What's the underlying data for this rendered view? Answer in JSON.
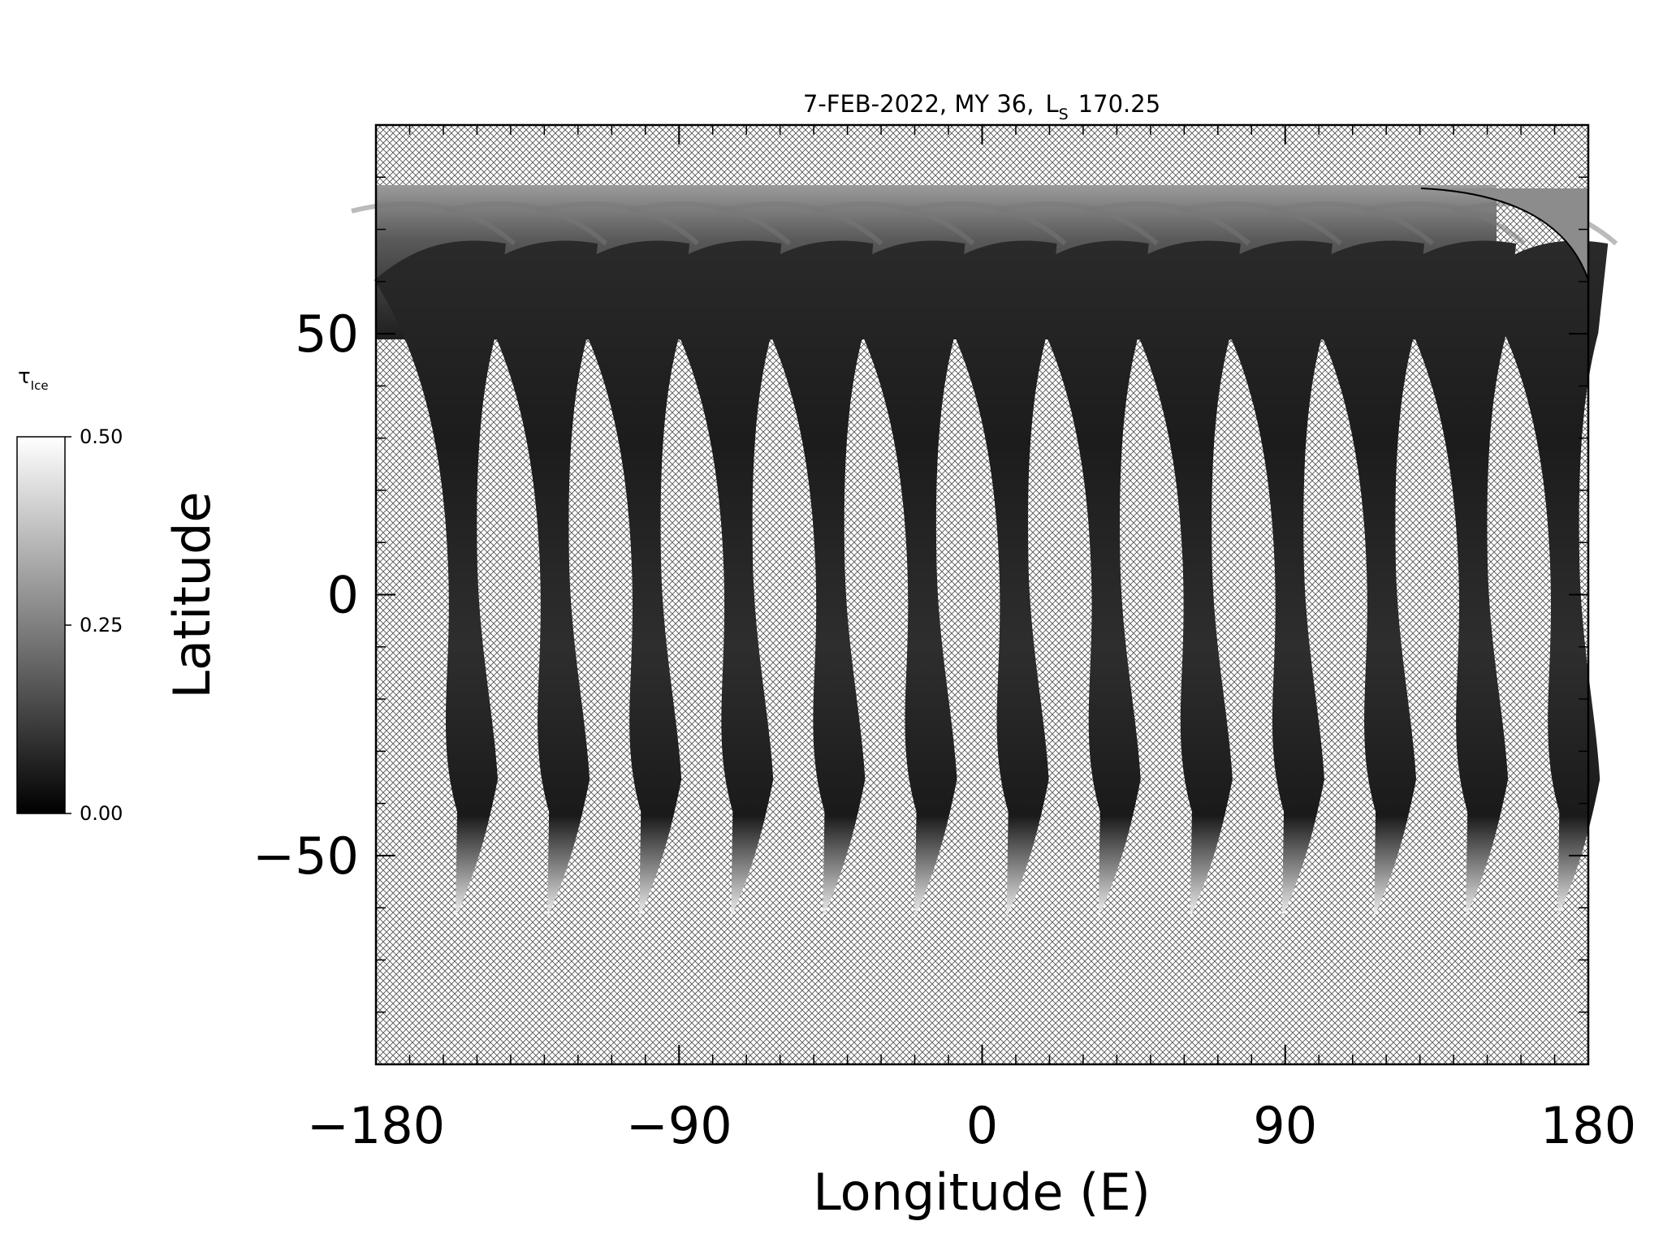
{
  "chart_data": {
    "type": "map",
    "title": {
      "text": "7-FEB-2022, MY 36,",
      "symbol": "L",
      "subscript": "S",
      "value": 170.25
    },
    "x_label": "Longitude (E)",
    "y_label": "Latitude",
    "xlim": [
      -180,
      180
    ],
    "ylim": [
      -90,
      90
    ],
    "xticks": [
      -180,
      -90,
      0,
      90,
      180
    ],
    "yticks": [
      -50,
      0,
      50
    ],
    "colorbar": {
      "label": "τ",
      "label_subscript": "Ice",
      "range": [
        0,
        0.5
      ],
      "ticks": [
        {
          "value": 0,
          "label": "0.00"
        },
        {
          "value": 0.25,
          "label": "0.25"
        },
        {
          "value": 0.5,
          "label": "0.50"
        }
      ]
    }
  }
}
